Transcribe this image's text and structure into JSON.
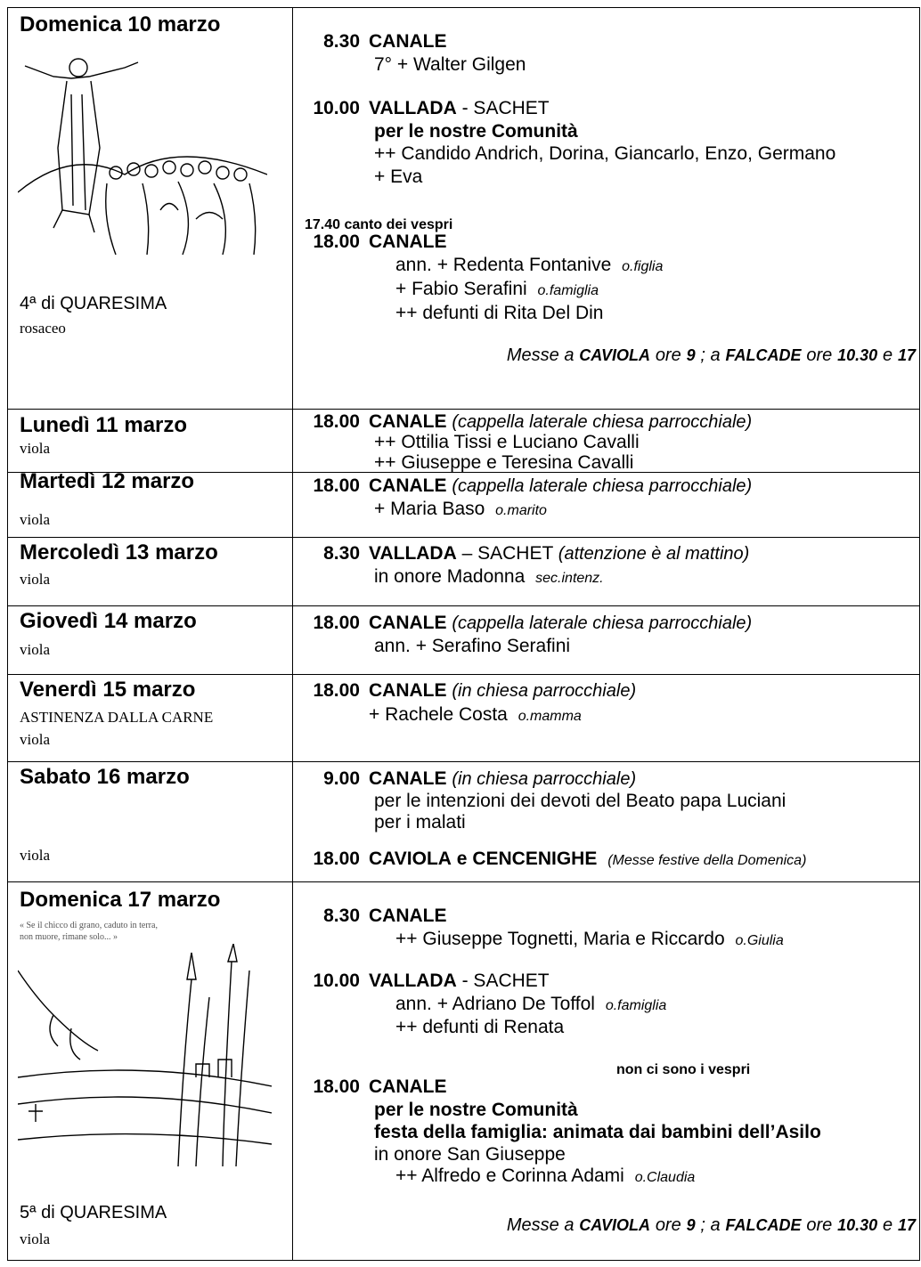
{
  "days": [
    {
      "date": "Domenica 10 marzo",
      "notes": [
        "4ª di QUARESIMA",
        "rosaceo"
      ],
      "lines": [
        [
          "8.30",
          "CANALE"
        ],
        [
          "7° + Walter Gilgen"
        ],
        [
          "10.00",
          "VALLADA",
          "- SACHET"
        ],
        [
          "per le nostre Comunità"
        ],
        [
          "++ Candido Andrich, Dorina, Giancarlo, Enzo, Germano"
        ],
        [
          "+ Eva"
        ],
        [
          "17.40  canto dei vespri"
        ],
        [
          "18.00",
          "CANALE"
        ],
        [
          "ann. + Redenta Fontanive",
          "o.figlia"
        ],
        [
          "+ Fabio Serafini",
          "o.famiglia"
        ],
        [
          "++ defunti di Rita Del Din"
        ],
        [
          "Messe a",
          "CAVIOLA",
          "ore",
          "9",
          "; a",
          "FALCADE",
          "ore",
          "10.30",
          "e",
          "17"
        ]
      ]
    },
    {
      "date": "Lunedì 11 marzo",
      "notes": [
        "viola"
      ],
      "lines": [
        [
          "18.00",
          "CANALE",
          "(cappella laterale chiesa parrocchiale)"
        ],
        [
          "++ Ottilia Tissi e Luciano Cavalli"
        ],
        [
          "++ Giuseppe e Teresina Cavalli"
        ]
      ]
    },
    {
      "date": "Martedì 12 marzo",
      "notes": [
        "viola"
      ],
      "lines": [
        [
          "18.00",
          "CANALE",
          "(cappella laterale chiesa parrocchiale)"
        ],
        [
          "+ Maria Baso",
          "o.marito"
        ]
      ]
    },
    {
      "date": "Mercoledì 13 marzo",
      "notes": [
        "viola"
      ],
      "lines": [
        [
          "8.30",
          "VALLADA",
          "– SACHET",
          "(attenzione è al mattino)"
        ],
        [
          "in onore Madonna",
          "sec.intenz."
        ]
      ]
    },
    {
      "date": "Giovedì 14 marzo",
      "notes": [
        "viola"
      ],
      "lines": [
        [
          "18.00",
          "CANALE",
          "(cappella laterale chiesa parrocchiale)"
        ],
        [
          "ann. + Serafino Serafini"
        ]
      ]
    },
    {
      "date": "Venerdì 15 marzo",
      "notes": [
        "ASTINENZA DALLA CARNE",
        "viola"
      ],
      "lines": [
        [
          "18.00",
          "CANALE",
          "(in chiesa parrocchiale)"
        ],
        [
          "+ Rachele Costa",
          "o.mamma"
        ]
      ]
    },
    {
      "date": "Sabato 16 marzo",
      "notes": [
        "viola"
      ],
      "lines": [
        [
          "9.00",
          "CANALE",
          "(in chiesa parrocchiale)"
        ],
        [
          "per le intenzioni dei devoti del Beato papa Luciani"
        ],
        [
          "per i malati"
        ],
        [
          "18.00",
          "CAVIOLA",
          "e",
          "CENCENIGHE",
          "(Messe festive della Domenica)"
        ]
      ]
    },
    {
      "date": "Domenica 17 marzo",
      "notes": [
        "5ª di QUARESIMA",
        "viola"
      ],
      "caption": [
        "« Se il chicco di grano, caduto in terra,",
        "non muore, rimane solo... »"
      ],
      "lines": [
        [
          "8.30",
          "CANALE"
        ],
        [
          "++ Giuseppe Tognetti, Maria e Riccardo",
          "o.Giulia"
        ],
        [
          "10.00",
          "VALLADA",
          "- SACHET"
        ],
        [
          "ann. + Adriano De Toffol",
          "o.famiglia"
        ],
        [
          "++ defunti di Renata"
        ],
        [
          "non ci sono i vespri"
        ],
        [
          "18.00",
          "CANALE"
        ],
        [
          "per le nostre Comunità"
        ],
        [
          "festa della famiglia: animata dai bambini dell’Asilo"
        ],
        [
          "in onore San Giuseppe"
        ],
        [
          "++ Alfredo e Corinna Adami",
          "o.Claudia"
        ],
        [
          "Messe a",
          "CAVIOLA",
          "ore",
          "9",
          "; a",
          "FALCADE",
          "ore",
          "10.30",
          "e",
          "17"
        ]
      ]
    }
  ]
}
